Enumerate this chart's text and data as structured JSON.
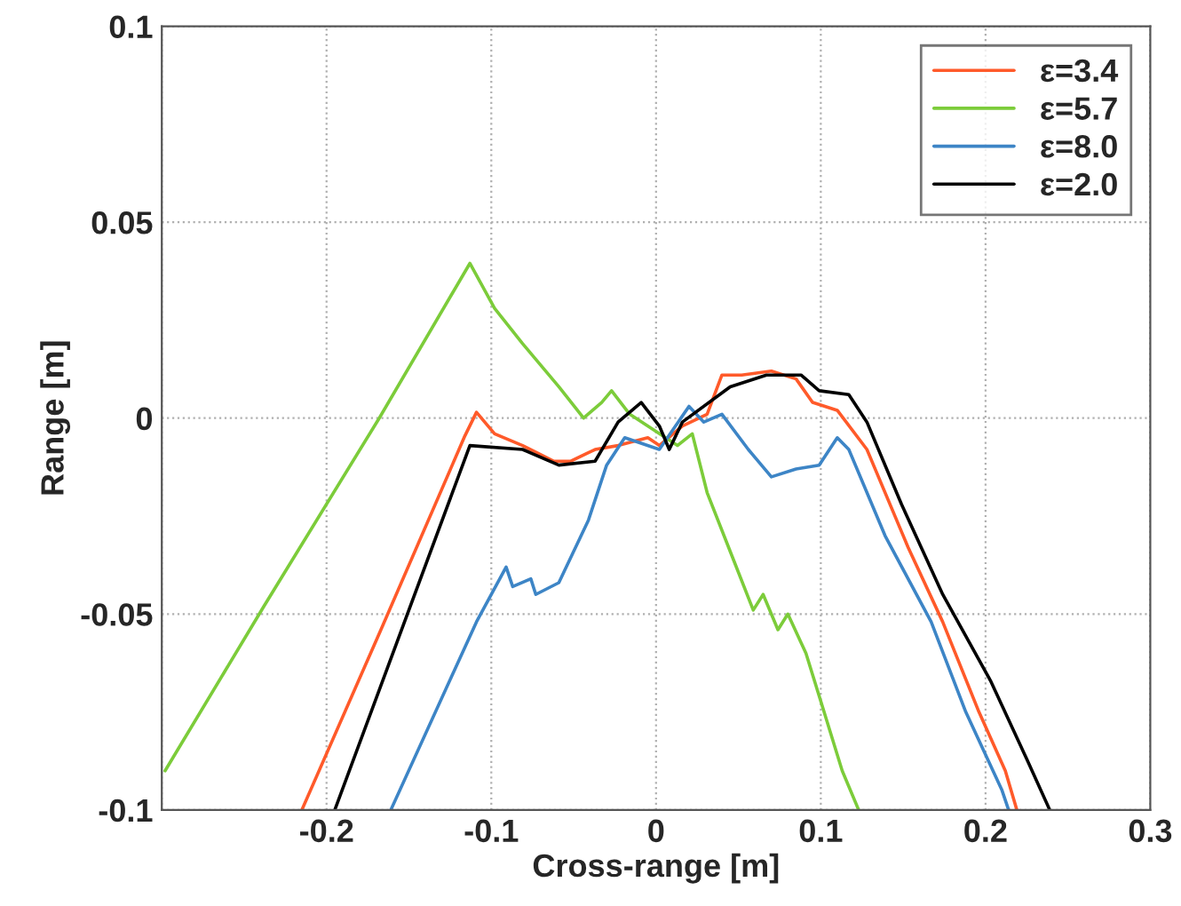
{
  "chart_data": {
    "type": "line",
    "xlabel": "Cross-range [m]",
    "ylabel": "Range [m]",
    "xlim": [
      -0.3,
      0.3
    ],
    "xticks": [
      {
        "value": -0.3,
        "label": null
      },
      -0.2,
      -0.1,
      0,
      0.1,
      0.2,
      0.3
    ],
    "ylim": [
      -0.1,
      0.1
    ],
    "yticks": [
      -0.1,
      -0.05,
      0,
      0.05,
      0.1
    ],
    "grid": true,
    "legend": "top right",
    "marker": "none",
    "line_style": "solid",
    "series": [
      {
        "name": "ε=3.4",
        "color": "#ff5a2a",
        "x": [
          -0.215,
          -0.167,
          -0.116,
          -0.109,
          -0.098,
          -0.081,
          -0.062,
          -0.052,
          -0.037,
          -0.023,
          -0.005,
          0.002,
          0.016,
          0.031,
          0.04,
          0.052,
          0.07,
          0.085,
          0.095,
          0.11,
          0.128,
          0.153,
          0.174,
          0.196,
          0.212,
          0.219
        ],
        "values": [
          -0.1,
          -0.054,
          -0.0045,
          0.0015,
          -0.004,
          -0.007,
          -0.011,
          -0.011,
          -0.008,
          -0.007,
          -0.005,
          -0.007,
          -0.002,
          0.001,
          0.011,
          0.011,
          0.012,
          0.01,
          0.004,
          0.002,
          -0.008,
          -0.033,
          -0.052,
          -0.075,
          -0.09,
          -0.1
        ]
      },
      {
        "name": "ε=5.7",
        "color": "#7ccc3a",
        "x": [
          -0.298,
          -0.238,
          -0.168,
          -0.113,
          -0.098,
          -0.081,
          -0.059,
          -0.044,
          -0.033,
          -0.027,
          -0.016,
          0.013,
          0.022,
          0.031,
          0.045,
          0.059,
          0.065,
          0.074,
          0.08,
          0.091,
          0.102,
          0.113,
          0.123
        ],
        "values": [
          -0.09,
          -0.048,
          0.0,
          0.0395,
          0.028,
          0.019,
          0.008,
          0.0,
          0.004,
          0.007,
          0.001,
          -0.007,
          -0.004,
          -0.019,
          -0.034,
          -0.049,
          -0.045,
          -0.054,
          -0.05,
          -0.06,
          -0.075,
          -0.09,
          -0.1
        ]
      },
      {
        "name": "ε=8.0",
        "color": "#3d85c6",
        "x": [
          -0.161,
          -0.109,
          -0.091,
          -0.087,
          -0.076,
          -0.073,
          -0.059,
          -0.041,
          -0.03,
          -0.019,
          0.002,
          0.02,
          0.029,
          0.04,
          0.056,
          0.07,
          0.085,
          0.099,
          0.11,
          0.117,
          0.139,
          0.167,
          0.188,
          0.21,
          0.214
        ],
        "values": [
          -0.1,
          -0.052,
          -0.038,
          -0.043,
          -0.041,
          -0.045,
          -0.042,
          -0.026,
          -0.012,
          -0.005,
          -0.008,
          0.003,
          -0.001,
          0.001,
          -0.008,
          -0.015,
          -0.013,
          -0.012,
          -0.005,
          -0.008,
          -0.03,
          -0.052,
          -0.075,
          -0.095,
          -0.1
        ]
      },
      {
        "name": "ε=2.0",
        "color": "#000000",
        "x": [
          -0.195,
          -0.113,
          -0.081,
          -0.059,
          -0.037,
          -0.023,
          -0.009,
          0.002,
          0.008,
          0.016,
          0.045,
          0.067,
          0.088,
          0.099,
          0.117,
          0.128,
          0.149,
          0.174,
          0.203,
          0.225,
          0.239
        ],
        "values": [
          -0.1,
          -0.007,
          -0.008,
          -0.012,
          -0.011,
          -0.001,
          0.004,
          -0.002,
          -0.008,
          -0.001,
          0.008,
          0.011,
          0.011,
          0.007,
          0.006,
          -0.001,
          -0.022,
          -0.045,
          -0.067,
          -0.087,
          -0.1
        ]
      }
    ]
  }
}
